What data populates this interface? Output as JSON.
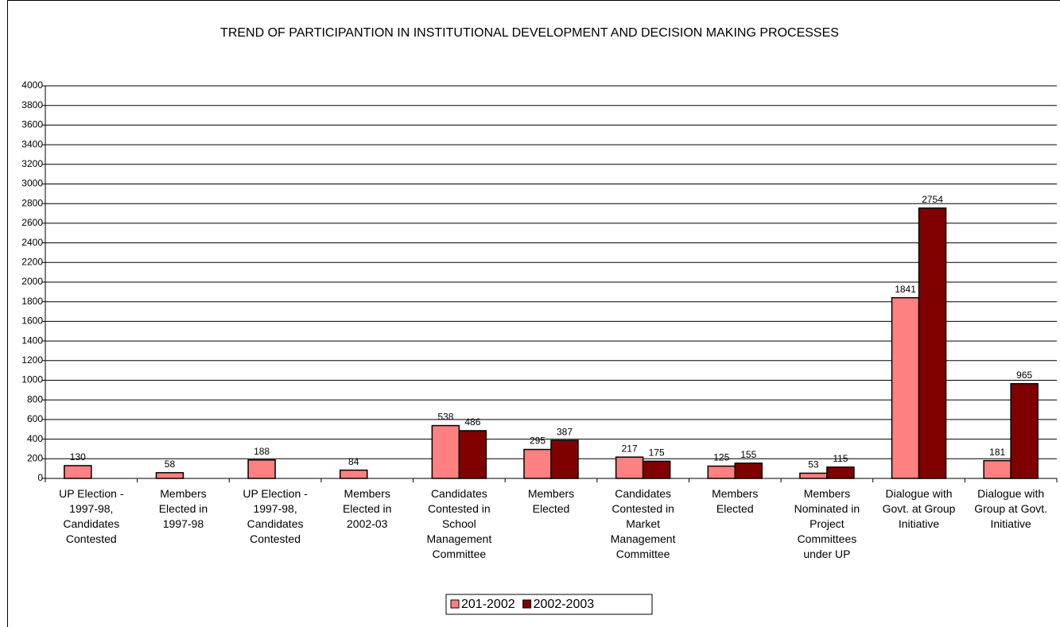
{
  "chart_data": {
    "type": "bar",
    "title": "TREND OF PARTICIPANTION IN INSTITUTIONAL DEVELOPMENT AND DECISION MAKING PROCESSES",
    "categories": [
      "UP Election - 1997-98, Candidates Contested",
      "Members Elected in 1997-98",
      "UP Election - 1997-98, Candidates Contested",
      "Members Elected in 2002-03",
      "Candidates Contested in School Management Committee",
      "Members Elected",
      "Candidates Contested in Market Management Committee",
      "Members Elected",
      "Members Nominated in Project Committees under UP",
      "Dialogue with Govt. at Group Initiative",
      "Dialogue with Group at Govt. Initiative"
    ],
    "series": [
      {
        "name": "201-2002",
        "color": "#ff8080",
        "values": [
          130,
          58,
          188,
          84,
          538,
          295,
          217,
          125,
          53,
          1841,
          181
        ]
      },
      {
        "name": "2002-2003",
        "color": "#800000",
        "values": [
          null,
          null,
          null,
          null,
          486,
          387,
          175,
          155,
          115,
          2754,
          965
        ]
      }
    ],
    "ylim": [
      0,
      4000
    ],
    "yticks": [
      0,
      200,
      400,
      600,
      800,
      1000,
      1200,
      1400,
      1600,
      1800,
      2000,
      2200,
      2400,
      2600,
      2800,
      3000,
      3200,
      3400,
      3600,
      3800,
      4000
    ],
    "grid": true,
    "legend": "bottom"
  }
}
